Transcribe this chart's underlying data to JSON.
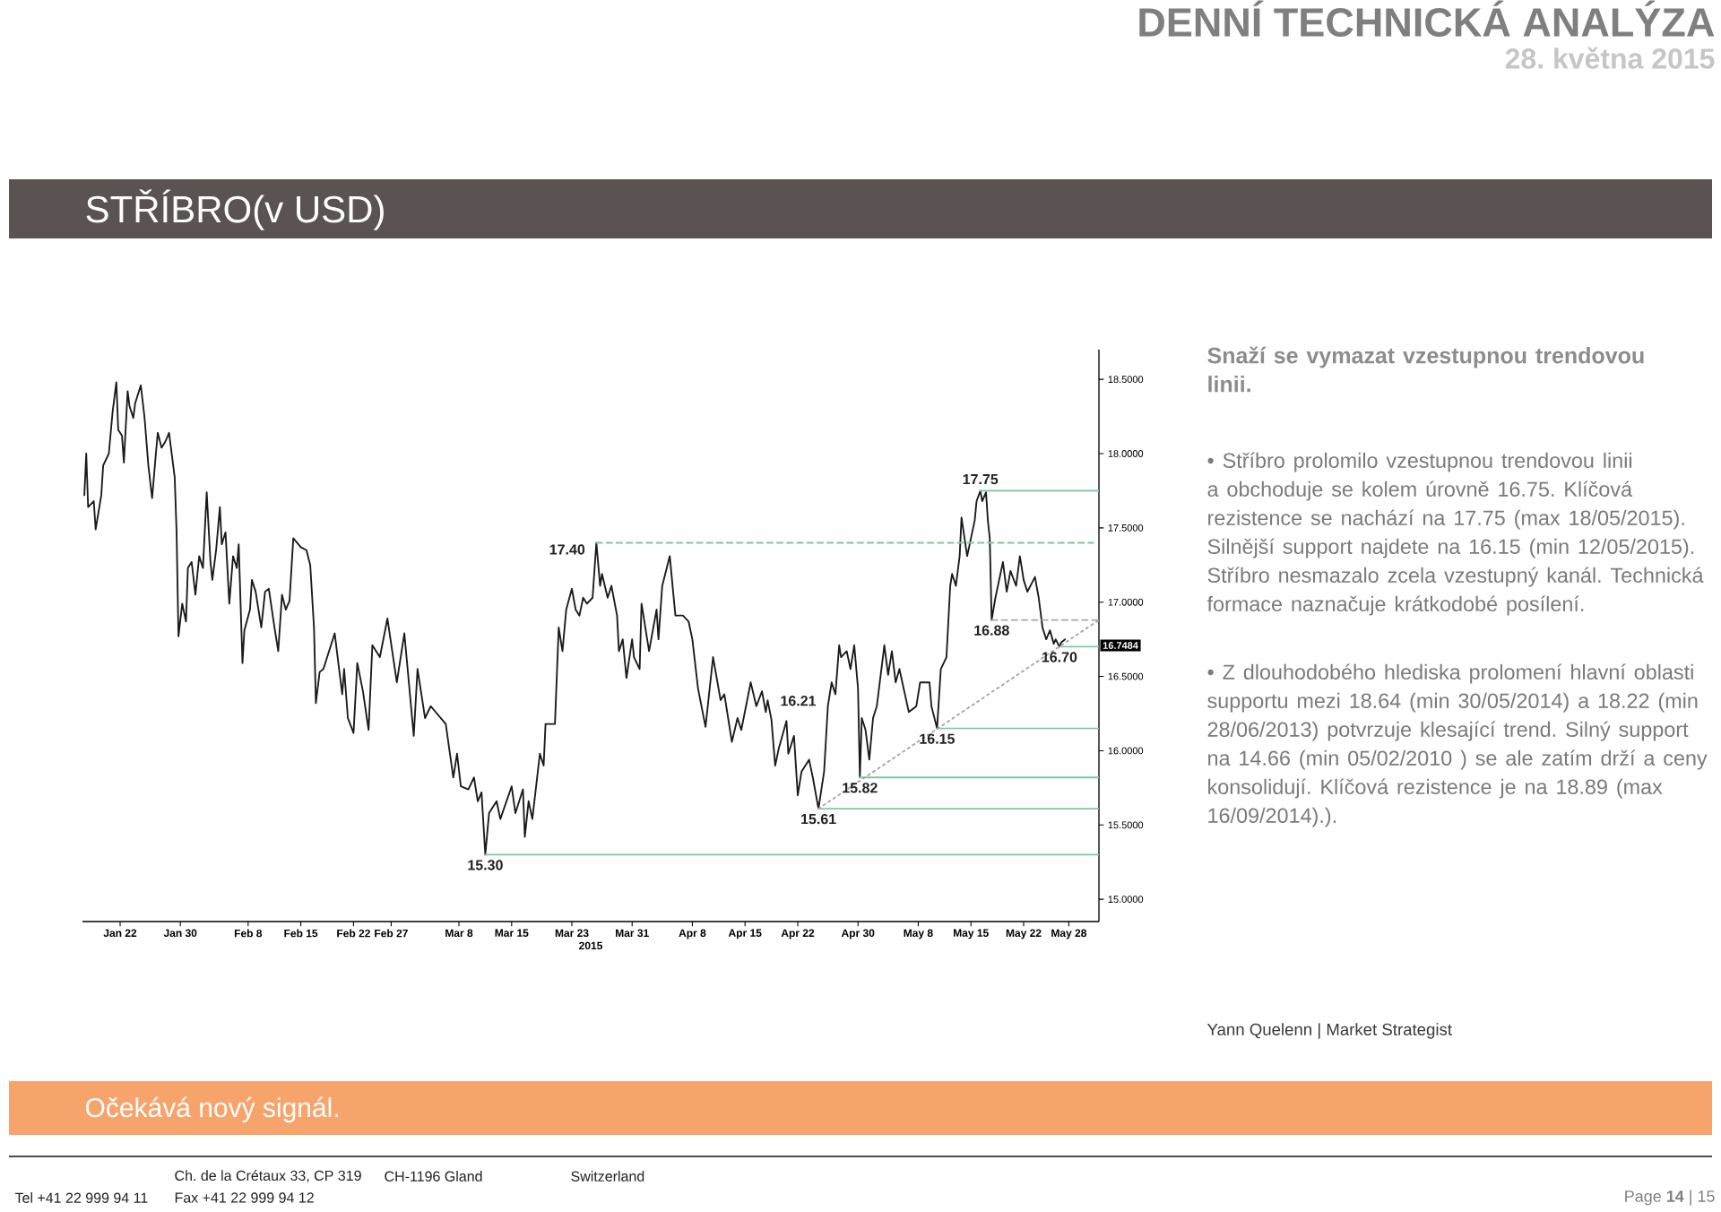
{
  "chart_data": {
    "type": "line",
    "title": "STŘÍBRO(v USD)",
    "subtitle": "Snaží se vymazat vzestupnou trendovou linii.",
    "xlabel": "2015",
    "xlim": [
      "2015-01-17",
      "2015-06-01"
    ],
    "xticks": [
      {
        "value": "2015-01-22",
        "label": "Jan 22"
      },
      {
        "value": "2015-01-30",
        "label": "Jan 30"
      },
      {
        "value": "2015-02-08",
        "label": "Feb 8"
      },
      {
        "value": "2015-02-15",
        "label": "Feb 15"
      },
      {
        "value": "2015-02-22",
        "label": "Feb 22"
      },
      {
        "value": "2015-02-27",
        "label": "Feb 27"
      },
      {
        "value": "2015-03-08",
        "label": "Mar 8"
      },
      {
        "value": "2015-03-15",
        "label": "Mar 15"
      },
      {
        "value": "2015-03-23",
        "label": "Mar 23"
      },
      {
        "value": "2015-03-31",
        "label": "Mar 31"
      },
      {
        "value": "2015-04-08",
        "label": "Apr 8"
      },
      {
        "value": "2015-04-15",
        "label": "Apr 15"
      },
      {
        "value": "2015-04-22",
        "label": "Apr 22"
      },
      {
        "value": "2015-04-30",
        "label": "Apr 30"
      },
      {
        "value": "2015-05-08",
        "label": "May 8"
      },
      {
        "value": "2015-05-15",
        "label": "May 15"
      },
      {
        "value": "2015-05-22",
        "label": "May 22"
      },
      {
        "value": "2015-05-28",
        "label": "May 28"
      }
    ],
    "ylim": [
      14.85,
      18.7
    ],
    "yticks": [
      {
        "value": 15,
        "label": "15.0000"
      },
      {
        "value": 15.5,
        "label": "15.5000"
      },
      {
        "value": 16,
        "label": "16.0000"
      },
      {
        "value": 16.5,
        "label": "16.5000"
      },
      {
        "value": 17,
        "label": "17.0000"
      },
      {
        "value": 17.5,
        "label": "17.5000"
      },
      {
        "value": 18,
        "label": "18.0000"
      },
      {
        "value": 18.5,
        "label": "18.5000"
      }
    ],
    "series": [
      {
        "color": "#1a1a1a",
        "line_style": "solid",
        "x": [
          "2015-01-17T06:00",
          "2015-01-17T12:00",
          "2015-01-17T18:00",
          "2015-01-18T12:00",
          "2015-01-18T18:00",
          "2015-01-19T12:00",
          "2015-01-19T18:00",
          "2015-01-20T12:00",
          "2015-01-21T00:00",
          "2015-01-21T12:00",
          "2015-01-21T18:00",
          "2015-01-22T06:00",
          "2015-01-22T12:00",
          "2015-01-23T00:00",
          "2015-01-23T06:00",
          "2015-01-23T18:00",
          "2015-01-24T00:00",
          "2015-01-24T18:00",
          "2015-01-25T06:00",
          "2015-01-25T18:00",
          "2015-01-26T06:00",
          "2015-01-26T18:00",
          "2015-01-27T00:00",
          "2015-01-27T12:00",
          "2015-01-28T00:00",
          "2015-01-28T12:00",
          "2015-01-29T00:00",
          "2015-01-29T06:00",
          "2015-01-29T12:00",
          "2015-01-29T18:00",
          "2015-01-30T06:00",
          "2015-01-30T18:00",
          "2015-01-31T00:00",
          "2015-01-31T12:00",
          "2015-02-01T00:00",
          "2015-02-01T12:00",
          "2015-02-02T00:00",
          "2015-02-02T12:00",
          "2015-02-03T00:00",
          "2015-02-03T06:00",
          "2015-02-03T18:00",
          "2015-02-04T06:00",
          "2015-02-04T12:00",
          "2015-02-05T00:00",
          "2015-02-05T12:00",
          "2015-02-06T00:00",
          "2015-02-06T12:00",
          "2015-02-06T18:00",
          "2015-02-07T06:00",
          "2015-02-07T12:00",
          "2015-02-08T06:00",
          "2015-02-08T12:00",
          "2015-02-09T00:00",
          "2015-02-09T18:00",
          "2015-02-10T06:00",
          "2015-02-10T18:00",
          "2015-02-11T12:00",
          "2015-02-12T00:00",
          "2015-02-12T12:00",
          "2015-02-13T00:00",
          "2015-02-13T12:00",
          "2015-02-14T00:00",
          "2015-02-15T00:00",
          "2015-02-15T18:00",
          "2015-02-16T06:00",
          "2015-02-16T18:00",
          "2015-02-17T00:00",
          "2015-02-17T12:00",
          "2015-02-18T00:00",
          "2015-02-19T00:00",
          "2015-02-19T12:00",
          "2015-02-20T12:00",
          "2015-02-20T18:00",
          "2015-02-21T06:00",
          "2015-02-22T00:00",
          "2015-02-22T12:00",
          "2015-02-23T06:00",
          "2015-02-24T00:00",
          "2015-02-24T12:00",
          "2015-02-25T12:00",
          "2015-02-26T12:00",
          "2015-02-27T18:00",
          "2015-02-28T18:00",
          "2015-03-02T00:00",
          "2015-03-02T12:00",
          "2015-03-03T12:00",
          "2015-03-04T06:00",
          "2015-03-06T06:00",
          "2015-03-07T06:00",
          "2015-03-07T18:00",
          "2015-03-08T06:00",
          "2015-03-09T06:00",
          "2015-03-10T00:00",
          "2015-03-10T12:00",
          "2015-03-11T00:00",
          "2015-03-11T12:00",
          "2015-03-12T00:00",
          "2015-03-13T00:00",
          "2015-03-13T12:00",
          "2015-03-15T00:00",
          "2015-03-15T12:00",
          "2015-03-16T12:00",
          "2015-03-16T18:00",
          "2015-03-17T06:00",
          "2015-03-17T18:00",
          "2015-03-18T18:00",
          "2015-03-19T06:00",
          "2015-03-19T12:00",
          "2015-03-20T18:00",
          "2015-03-21T06:00",
          "2015-03-21T18:00",
          "2015-03-22T06:00",
          "2015-03-23T00:00",
          "2015-03-23T12:00",
          "2015-03-24T00:00",
          "2015-03-24T12:00",
          "2015-03-25T00:00",
          "2015-03-25T18:00",
          "2015-03-26T06:00",
          "2015-03-26T18:00",
          "2015-03-27T00:00",
          "2015-03-27T18:00",
          "2015-03-28T06:00",
          "2015-03-29T00:00",
          "2015-03-29T06:00",
          "2015-03-29T18:00",
          "2015-03-30T06:00",
          "2015-03-31T00:00",
          "2015-03-31T06:00",
          "2015-04-01T00:00",
          "2015-04-01T06:00",
          "2015-04-02T06:00",
          "2015-04-03T06:00",
          "2015-04-03T12:00",
          "2015-04-04T00:00",
          "2015-04-05T00:00",
          "2015-04-05T18:00",
          "2015-04-06T18:00",
          "2015-04-07T12:00",
          "2015-04-08T00:00",
          "2015-04-08T18:00",
          "2015-04-09T18:00",
          "2015-04-10T18:00",
          "2015-04-11T18:00",
          "2015-04-12T06:00",
          "2015-04-13T06:00",
          "2015-04-14T00:00",
          "2015-04-14T12:00",
          "2015-04-15T18:00",
          "2015-04-16T12:00",
          "2015-04-17T06:00",
          "2015-04-17T18:00",
          "2015-04-18T00:00",
          "2015-04-18T12:00",
          "2015-04-19T00:00",
          "2015-04-19T12:00",
          "2015-04-20T12:00",
          "2015-04-20T18:00",
          "2015-04-21T12:00",
          "2015-04-22T00:00",
          "2015-04-22T12:00",
          "2015-04-23T12:00",
          "2015-04-24T00:00",
          "2015-04-24T18:00",
          "2015-04-25T12:00",
          "2015-04-26T00:00",
          "2015-04-26T12:00",
          "2015-04-27T00:00",
          "2015-04-27T12:00",
          "2015-04-27T18:00",
          "2015-04-28T12:00",
          "2015-04-29T00:00",
          "2015-04-29T12:00",
          "2015-04-30T00:00",
          "2015-04-30T06:00",
          "2015-04-30T12:00",
          "2015-05-01T00:00",
          "2015-05-01T12:00",
          "2015-05-02T00:00",
          "2015-05-02T12:00",
          "2015-05-03T12:00",
          "2015-05-04T00:00",
          "2015-05-04T12:00",
          "2015-05-05T00:00",
          "2015-05-05T12:00",
          "2015-05-06T18:00",
          "2015-05-07T18:00",
          "2015-05-08T06:00",
          "2015-05-09T12:00",
          "2015-05-09T18:00",
          "2015-05-10T12:00",
          "2015-05-11T00:00",
          "2015-05-11T18:00",
          "2015-05-12T06:00",
          "2015-05-12T12:00",
          "2015-05-13T00:00",
          "2015-05-13T12:00",
          "2015-05-13T18:00",
          "2015-05-14T12:00",
          "2015-05-15T12:00",
          "2015-05-15T18:00",
          "2015-05-16T06:00",
          "2015-05-16T12:00",
          "2015-05-17T00:00",
          "2015-05-17T06:00",
          "2015-05-17T12:00",
          "2015-05-17T18:00",
          "2015-05-18T06:00",
          "2015-05-18T18:00",
          "2015-05-19T06:00",
          "2015-05-19T18:00",
          "2015-05-20T06:00",
          "2015-05-21T00:00",
          "2015-05-21T12:00",
          "2015-05-22T00:00",
          "2015-05-22T12:00",
          "2015-05-23T12:00",
          "2015-05-24T00:00",
          "2015-05-24T12:00",
          "2015-05-25T00:00",
          "2015-05-25T12:00",
          "2015-05-26T00:00",
          "2015-05-26T06:00",
          "2015-05-26T18:00",
          "2015-05-27T00:00",
          "2015-05-27T12:00"
        ],
        "values": [
          17.72,
          18.0,
          17.64,
          17.68,
          17.49,
          17.72,
          17.92,
          18.0,
          18.28,
          18.48,
          18.16,
          18.12,
          17.94,
          18.42,
          18.32,
          18.24,
          18.34,
          18.46,
          18.24,
          17.92,
          17.7,
          18.0,
          18.14,
          18.04,
          18.08,
          18.14,
          17.94,
          17.84,
          17.47,
          16.77,
          16.99,
          16.87,
          17.23,
          17.27,
          17.05,
          17.31,
          17.23,
          17.74,
          17.27,
          17.15,
          17.35,
          17.64,
          17.39,
          17.47,
          16.99,
          17.31,
          17.23,
          17.39,
          16.59,
          16.81,
          16.95,
          17.15,
          17.07,
          16.83,
          17.07,
          17.09,
          16.83,
          16.67,
          17.05,
          16.95,
          17.01,
          17.43,
          17.37,
          17.35,
          17.25,
          16.83,
          16.32,
          16.53,
          16.55,
          16.71,
          16.79,
          16.38,
          16.55,
          16.22,
          16.12,
          16.59,
          16.4,
          16.14,
          16.71,
          16.63,
          16.89,
          16.46,
          16.79,
          16.1,
          16.55,
          16.22,
          16.3,
          16.18,
          15.82,
          15.98,
          15.76,
          15.74,
          15.82,
          15.66,
          15.72,
          15.3,
          15.58,
          15.66,
          15.54,
          15.76,
          15.58,
          15.74,
          15.42,
          15.66,
          15.54,
          15.98,
          15.9,
          16.18,
          16.18,
          16.83,
          16.67,
          16.95,
          17.09,
          16.95,
          16.91,
          17.03,
          16.99,
          17.03,
          17.4,
          17.11,
          17.19,
          17.03,
          17.11,
          16.91,
          16.67,
          16.75,
          16.49,
          16.75,
          16.63,
          16.55,
          16.99,
          16.67,
          16.95,
          16.75,
          17.11,
          17.31,
          16.91,
          16.91,
          16.87,
          16.75,
          16.42,
          16.16,
          16.63,
          16.34,
          16.38,
          16.06,
          16.22,
          16.14,
          16.46,
          16.3,
          16.4,
          16.26,
          16.34,
          16.21,
          15.9,
          16.02,
          16.2,
          15.98,
          16.1,
          15.7,
          15.86,
          15.94,
          15.82,
          15.61,
          15.86,
          16.3,
          16.46,
          16.38,
          16.71,
          16.63,
          16.67,
          16.55,
          16.71,
          16.42,
          15.82,
          16.22,
          16.14,
          15.94,
          16.22,
          16.3,
          16.71,
          16.51,
          16.67,
          16.46,
          16.55,
          16.26,
          16.3,
          16.46,
          16.46,
          16.3,
          16.15,
          16.55,
          16.63,
          17.11,
          17.19,
          17.11,
          17.31,
          17.57,
          17.31,
          17.55,
          17.68,
          17.75,
          17.68,
          17.74,
          17.55,
          17.43,
          16.88,
          17.03,
          17.15,
          17.27,
          17.07,
          17.21,
          17.11,
          17.31,
          17.15,
          17.07,
          17.17,
          17.03,
          16.83,
          16.75,
          16.81,
          16.72,
          16.75,
          16.7,
          16.73,
          16.75
        ]
      },
      {
        "x": [
          "2015-03-11T12:00",
          "2015-06-01"
        ],
        "values": [
          15.3,
          15.3
        ],
        "color": "#7fc6a2",
        "line_style": "solid"
      },
      {
        "x": [
          "2015-04-24T18:00",
          "2015-06-01"
        ],
        "values": [
          15.61,
          15.61
        ],
        "color": "#7fc6a2",
        "line_style": "solid"
      },
      {
        "x": [
          "2015-04-30T06:00",
          "2015-06-01"
        ],
        "values": [
          15.82,
          15.82
        ],
        "color": "#7fc6a2",
        "line_style": "solid"
      },
      {
        "x": [
          "2015-05-10T12:00",
          "2015-06-01"
        ],
        "values": [
          16.15,
          16.15
        ],
        "color": "#7fc6a2",
        "line_style": "solid"
      },
      {
        "x": [
          "2015-05-26T18:00",
          "2015-06-01"
        ],
        "values": [
          16.7,
          16.7
        ],
        "color": "#7fc6a2",
        "line_style": "solid"
      },
      {
        "x": [
          "2015-05-16T06:00",
          "2015-06-01"
        ],
        "values": [
          17.75,
          17.75
        ],
        "color": "#7fc6a2",
        "line_style": "solid"
      },
      {
        "x": [
          "2015-03-26T06:00",
          "2015-05-31T06:00"
        ],
        "values": [
          17.4,
          17.4
        ],
        "color": "#7fc6a2",
        "line_style": "dashed"
      },
      {
        "x": [
          "2015-05-17T18:00",
          "2015-06-01"
        ],
        "values": [
          16.88,
          16.88
        ],
        "color": "#a6a6a6",
        "line_style": "dashed"
      },
      {
        "x": [
          "2015-04-24T18:00",
          "2015-06-01"
        ],
        "values": [
          15.61,
          16.88
        ],
        "color": "#a6a6a6",
        "line_style": "dotted"
      }
    ],
    "annotations": [
      "DENNÍ TECHNICKÁ ANALÝZA",
      "28. května 2015",
      "• Stříbro prolomilo vzestupnou trendovou linii a obchoduje se kolem úrovně 16.75. Klíčová rezistence se nachází na 17.75 (max 18/05/2015). Silnější support najdete na 16.15 (min 12/05/2015). Stříbro nesmazalo zcela vzestupný kanál. Technická formace naznačuje krátkodobé posílení.",
      "• Z dlouhodobého hlediska prolomení hlavní oblasti supportu mezi 18.64 (min 30/05/2014) a 18.22 (min 28/06/2013) potvrzuje klesající trend. Silný support na 14.66 (min 05/02/2010 ) se ale zatím drží a ceny konsolidují. Klíčová rezistence je na 18.89 (max 16/09/2014).).",
      "Yann Quelenn | Market Strategist",
      "Očekává nový signál.",
      "Ch. de la Crétaux 33, CP 319",
      "CH-1196 Gland",
      "Switzerland",
      "Tel +41 22 999 94 11",
      "Fax +41 22 999 94 12",
      "Page **14** | 15",
      "16.7484",
      {
        "text": "17.40",
        "x": "2015-03-26T06:00",
        "y": 17.4
      },
      {
        "text": "17.75",
        "x": "2015-05-16T06:00",
        "y": 17.75
      },
      {
        "text": "16.88",
        "x": "2015-05-17T18:00",
        "y": 16.88
      },
      {
        "text": "16.70",
        "x": "2015-05-26T18:00",
        "y": 16.7
      },
      {
        "text": "16.21",
        "x": "2015-04-18T12:00",
        "y": 16.21
      },
      {
        "text": "16.15",
        "x": "2015-05-10T12:00",
        "y": 16.15
      },
      {
        "text": "15.82",
        "x": "2015-04-30T06:00",
        "y": 15.82
      },
      {
        "text": "15.61",
        "x": "2015-04-24T18:00",
        "y": 15.61
      },
      {
        "text": "15.30",
        "x": "2015-03-11T12:00",
        "y": 15.3
      }
    ]
  }
}
